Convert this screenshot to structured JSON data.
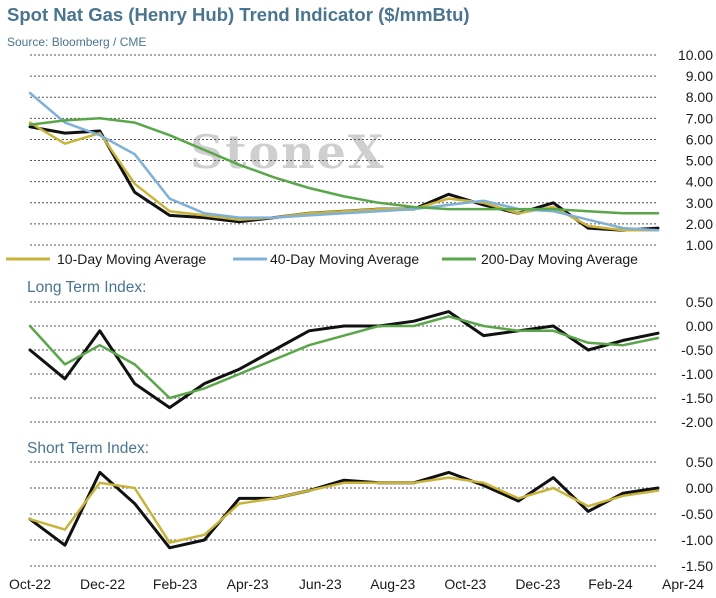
{
  "title": "Spot Nat Gas (Henry Hub) Trend Indicator ($/mmBtu)",
  "subtitle": "Source: Bloomberg / CME",
  "watermark": "StoneX",
  "x_axis": {
    "tick_labels": [
      "Oct-22",
      "Dec-22",
      "Feb-23",
      "Apr-23",
      "Jun-23",
      "Aug-23",
      "Oct-23",
      "Dec-23",
      "Feb-24",
      "Apr-24"
    ]
  },
  "colors": {
    "spot": "#111111",
    "ma10": "#c8b43a",
    "ma40": "#7fb0d8",
    "ma200": "#5aa64a",
    "grid": "#555555"
  },
  "chart_data": [
    {
      "type": "line",
      "title": "",
      "ylim": [
        1.0,
        10.0
      ],
      "yticks": [
        "10.00",
        "9.00",
        "8.00",
        "7.00",
        "6.00",
        "5.00",
        "4.00",
        "3.00",
        "2.00",
        "1.00"
      ],
      "grid": true,
      "legend_position": "bottom",
      "x": [
        "Oct-22",
        "Nov-22",
        "Dec-22",
        "Jan-23",
        "Feb-23",
        "Mar-23",
        "Apr-23",
        "May-23",
        "Jun-23",
        "Jul-23",
        "Aug-23",
        "Sep-23",
        "Oct-23",
        "Nov-23",
        "Dec-23",
        "Jan-24",
        "Feb-24",
        "Mar-24",
        "Apr-24"
      ],
      "series": [
        {
          "name": "",
          "color_key": "spot",
          "values": [
            6.6,
            6.3,
            6.4,
            3.5,
            2.4,
            2.3,
            2.1,
            2.3,
            2.5,
            2.6,
            2.7,
            2.7,
            3.4,
            2.9,
            2.5,
            3.0,
            1.8,
            1.7,
            1.8
          ]
        },
        {
          "name": "10-Day Moving Average",
          "color_key": "ma10",
          "values": [
            6.8,
            5.8,
            6.3,
            3.9,
            2.6,
            2.4,
            2.2,
            2.3,
            2.5,
            2.6,
            2.7,
            2.7,
            3.2,
            3.0,
            2.5,
            2.8,
            1.9,
            1.7,
            1.7
          ]
        },
        {
          "name": "40-Day Moving Average",
          "color_key": "ma40",
          "values": [
            8.2,
            6.8,
            6.2,
            5.3,
            3.2,
            2.5,
            2.3,
            2.3,
            2.4,
            2.5,
            2.6,
            2.7,
            2.9,
            3.1,
            2.7,
            2.6,
            2.2,
            1.8,
            1.7
          ]
        },
        {
          "name": "200-Day Moving Average",
          "color_key": "ma200",
          "values": [
            6.7,
            6.9,
            7.0,
            6.8,
            6.2,
            5.5,
            4.8,
            4.2,
            3.7,
            3.3,
            3.0,
            2.8,
            2.7,
            2.7,
            2.7,
            2.7,
            2.6,
            2.5,
            2.5
          ]
        }
      ]
    },
    {
      "type": "line",
      "title": "Long Term Index:",
      "ylim": [
        -2.0,
        0.5
      ],
      "yticks": [
        "0.50",
        "0.00",
        "-0.50",
        "-1.00",
        "-1.50",
        "-2.00"
      ],
      "grid": true,
      "x": [
        "Oct-22",
        "Nov-22",
        "Dec-22",
        "Jan-23",
        "Feb-23",
        "Mar-23",
        "Apr-23",
        "May-23",
        "Jun-23",
        "Jul-23",
        "Aug-23",
        "Sep-23",
        "Oct-23",
        "Nov-23",
        "Dec-23",
        "Jan-24",
        "Feb-24",
        "Mar-24",
        "Apr-24"
      ],
      "series": [
        {
          "name": "",
          "color_key": "spot",
          "values": [
            -0.5,
            -1.1,
            -0.1,
            -1.2,
            -1.7,
            -1.2,
            -0.9,
            -0.5,
            -0.1,
            0.0,
            0.0,
            0.1,
            0.3,
            -0.2,
            -0.1,
            0.0,
            -0.5,
            -0.3,
            -0.15
          ]
        },
        {
          "name": "",
          "color_key": "ma200",
          "values": [
            0.0,
            -0.8,
            -0.4,
            -0.8,
            -1.5,
            -1.3,
            -1.0,
            -0.7,
            -0.4,
            -0.2,
            0.0,
            0.0,
            0.2,
            0.0,
            -0.1,
            -0.1,
            -0.35,
            -0.4,
            -0.25
          ]
        }
      ]
    },
    {
      "type": "line",
      "title": "Short Term Index:",
      "ylim": [
        -1.5,
        0.5
      ],
      "yticks": [
        "0.50",
        "0.00",
        "-0.50",
        "-1.00",
        "-1.50"
      ],
      "grid": true,
      "x": [
        "Oct-22",
        "Nov-22",
        "Dec-22",
        "Jan-23",
        "Feb-23",
        "Mar-23",
        "Apr-23",
        "May-23",
        "Jun-23",
        "Jul-23",
        "Aug-23",
        "Sep-23",
        "Oct-23",
        "Nov-23",
        "Dec-23",
        "Jan-24",
        "Feb-24",
        "Mar-24",
        "Apr-24"
      ],
      "series": [
        {
          "name": "",
          "color_key": "spot",
          "values": [
            -0.6,
            -1.1,
            0.3,
            -0.3,
            -1.15,
            -1.0,
            -0.2,
            -0.2,
            -0.05,
            0.15,
            0.1,
            0.1,
            0.3,
            0.05,
            -0.25,
            0.2,
            -0.45,
            -0.1,
            0.0
          ]
        },
        {
          "name": "",
          "color_key": "ma10",
          "values": [
            -0.6,
            -0.8,
            0.1,
            0.0,
            -1.05,
            -0.9,
            -0.3,
            -0.2,
            -0.05,
            0.1,
            0.1,
            0.1,
            0.2,
            0.1,
            -0.2,
            0.0,
            -0.35,
            -0.15,
            -0.05
          ]
        }
      ]
    }
  ]
}
